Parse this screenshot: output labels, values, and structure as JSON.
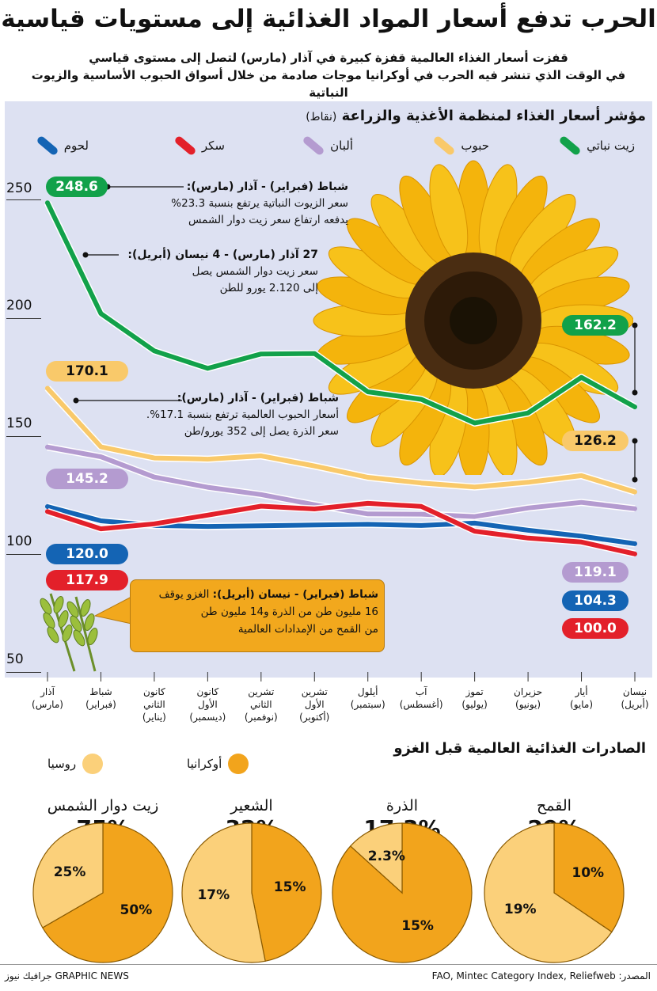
{
  "title": "الحرب تدفع أسعار المواد الغذائية إلى مستويات قياسية",
  "subtitle": {
    "line1": "قفزت أسعار الغذاء العالمية قفزة كبيرة في آذار (مارس) لتصل إلى مستوى قياسي",
    "line2": "في الوقت الذي تنشر فيه الحرب في أوكرانيا موجات صادمة من خلال أسواق الحبوب الأساسية والزيوت النباتية"
  },
  "chart_data": {
    "type": "line",
    "title": "مؤشر أسعار الغذاء لمنظمة الأغذية والزراعة",
    "unit": "(نقاط)",
    "ylim": [
      50,
      250
    ],
    "yticks": [
      "250",
      "200",
      "150",
      "100",
      "50"
    ],
    "categories": [
      [
        "آذار",
        "(مارس)"
      ],
      [
        "شباط",
        "(فبراير)"
      ],
      [
        "كانون",
        "الثاني",
        "(يناير)"
      ],
      [
        "كانون",
        "الأول",
        "(ديسمبر)"
      ],
      [
        "تشرين",
        "الثاني",
        "(نوفمبر)"
      ],
      [
        "تشرين",
        "الأول",
        "(أكتوبر)"
      ],
      [
        "أيلول",
        "(سبتمبر)"
      ],
      [
        "آب",
        "(أغسطس)"
      ],
      [
        "تموز",
        "(يوليو)"
      ],
      [
        "حزيران",
        "(يونيو)"
      ],
      [
        "أيار",
        "(مايو)"
      ],
      [
        "نيسان",
        "(أبريل)"
      ]
    ],
    "series": [
      {
        "name": "زيت نباتي",
        "color": "#12a14a",
        "values": [
          248.6,
          201.7,
          185.9,
          178.5,
          184.6,
          184.8,
          168.6,
          165.4,
          155.4,
          159.6,
          174.7,
          162.2
        ],
        "start_label": "248.6",
        "end_label": "162.2"
      },
      {
        "name": "حبوب",
        "color": "#f9c96a",
        "values": [
          170.1,
          145.3,
          140.6,
          140.1,
          141.5,
          137.2,
          132.4,
          130.0,
          128.3,
          130.3,
          133.1,
          126.2
        ],
        "start_label": "170.1",
        "end_label": "126.2"
      },
      {
        "name": "ألبان",
        "color": "#b49bd0",
        "values": [
          145.2,
          141.1,
          132.5,
          128.2,
          125.1,
          120.8,
          116.9,
          116.8,
          115.8,
          119.4,
          121.8,
          119.1
        ],
        "start_label": "145.2",
        "end_label": "119.1"
      },
      {
        "name": "سكر",
        "color": "#e3202a",
        "values": [
          117.9,
          110.6,
          112.7,
          116.4,
          120.2,
          119.0,
          121.4,
          120.1,
          109.6,
          106.7,
          105.0,
          100.0
        ],
        "start_label": "117.9",
        "end_label": "100.0"
      },
      {
        "name": "لحوم",
        "color": "#1464b4",
        "values": [
          120.0,
          114.0,
          112.0,
          111.6,
          111.9,
          112.2,
          112.5,
          112.0,
          113.0,
          110.0,
          107.5,
          104.3
        ],
        "start_label": "120.0",
        "end_label": "104.3"
      }
    ],
    "annotations": [
      {
        "head": "شباط (فبراير) - آذار (مارس):",
        "lines": [
          "سعر الزيوت النباتية يرتفع بنسبة 23.3%",
          "يدفعه ارتفاع سعر زيت دوار الشمس"
        ]
      },
      {
        "head": "27 آذار (مارس) - 4 نيسان (أبريل):",
        "lines": [
          "سعر زيت دوار الشمس يصل",
          "إلى 2.120 يورو للطن"
        ]
      },
      {
        "head": "شباط (فبراير) - آذار (مارس):",
        "lines": [
          "أسعار الحبوب العالمية ترتفع بنسبة 17.1%.",
          "سعر الذرة يصل إلى 352 يورو/طن"
        ]
      },
      {
        "head": "شباط (فبراير) - نيسان (أبريل):",
        "lines": [
          "الغزو يوقف",
          "16 مليون طن من الذرة و14 مليون طن",
          "من القمح من الإمدادات العالمية"
        ]
      }
    ]
  },
  "exports": {
    "title": "الصادرات الغذائية العالمية قبل الغزو",
    "legend": {
      "ukraine": "أوكرانيا",
      "russia": "روسيا"
    },
    "colors": {
      "ukraine": "#f2a41c",
      "russia": "#fbd07a"
    },
    "pies": [
      {
        "name": "القمح",
        "total": "29%",
        "ukraine": 10,
        "russia": 19,
        "ukraine_label": "10%",
        "russia_label": "19%"
      },
      {
        "name": "الذرة",
        "total": "17.3%",
        "ukraine": 15,
        "russia": 2.3,
        "ukraine_label": "15%",
        "russia_label": "2.3%"
      },
      {
        "name": "الشعير",
        "total": "32%",
        "ukraine": 15,
        "russia": 17,
        "ukraine_label": "15%",
        "russia_label": "17%"
      },
      {
        "name": "زيت دوار الشمس",
        "total": "75%",
        "ukraine": 50,
        "russia": 25,
        "ukraine_label": "50%",
        "russia_label": "25%"
      }
    ]
  },
  "footer": {
    "source": "المصدر: FAO, Mintec Category Index, Reliefweb",
    "credit": "GRAPHIC NEWS جرافيك نيوز"
  }
}
